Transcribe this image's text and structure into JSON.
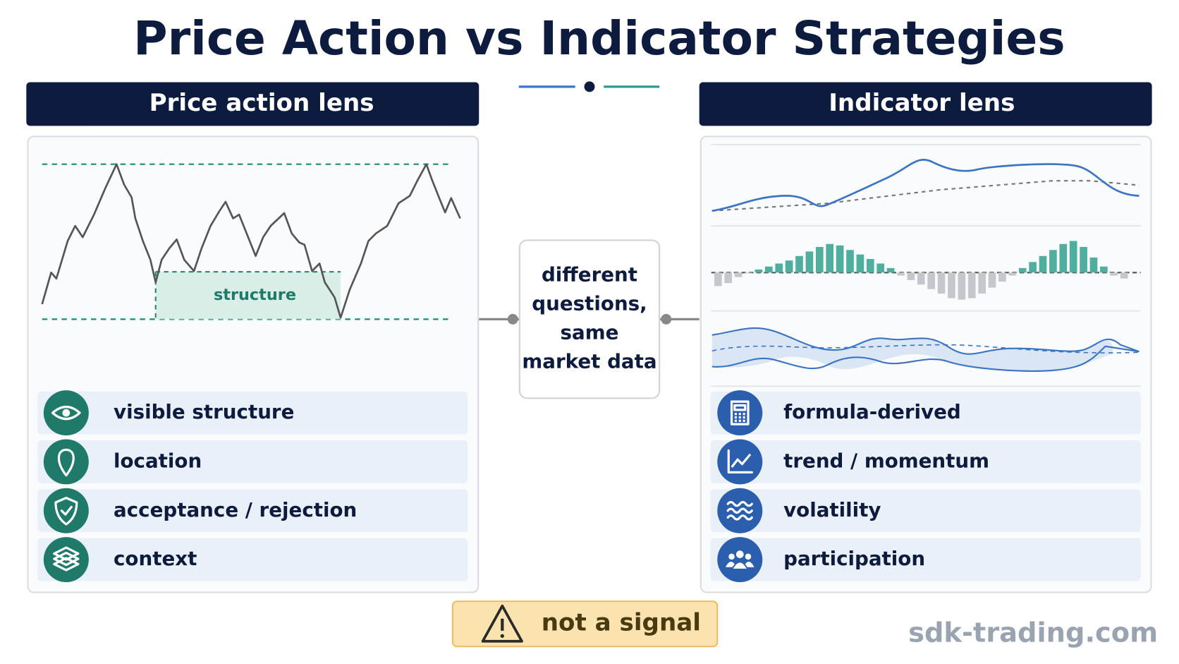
{
  "title": "Price Action vs Indicator Strategies",
  "left_panel": {
    "header": "Price action lens",
    "chart_label": "structure",
    "items": [
      "visible structure",
      "location",
      "acceptance / rejection",
      "context"
    ]
  },
  "center": {
    "lines": [
      "different",
      "questions,",
      "same",
      "market data"
    ]
  },
  "right_panel": {
    "header": "Indicator lens",
    "items": [
      "formula-derived",
      "trend / momentum",
      "volatility",
      "participation"
    ]
  },
  "warning": "not a signal",
  "watermark": "sdk-trading.com"
}
